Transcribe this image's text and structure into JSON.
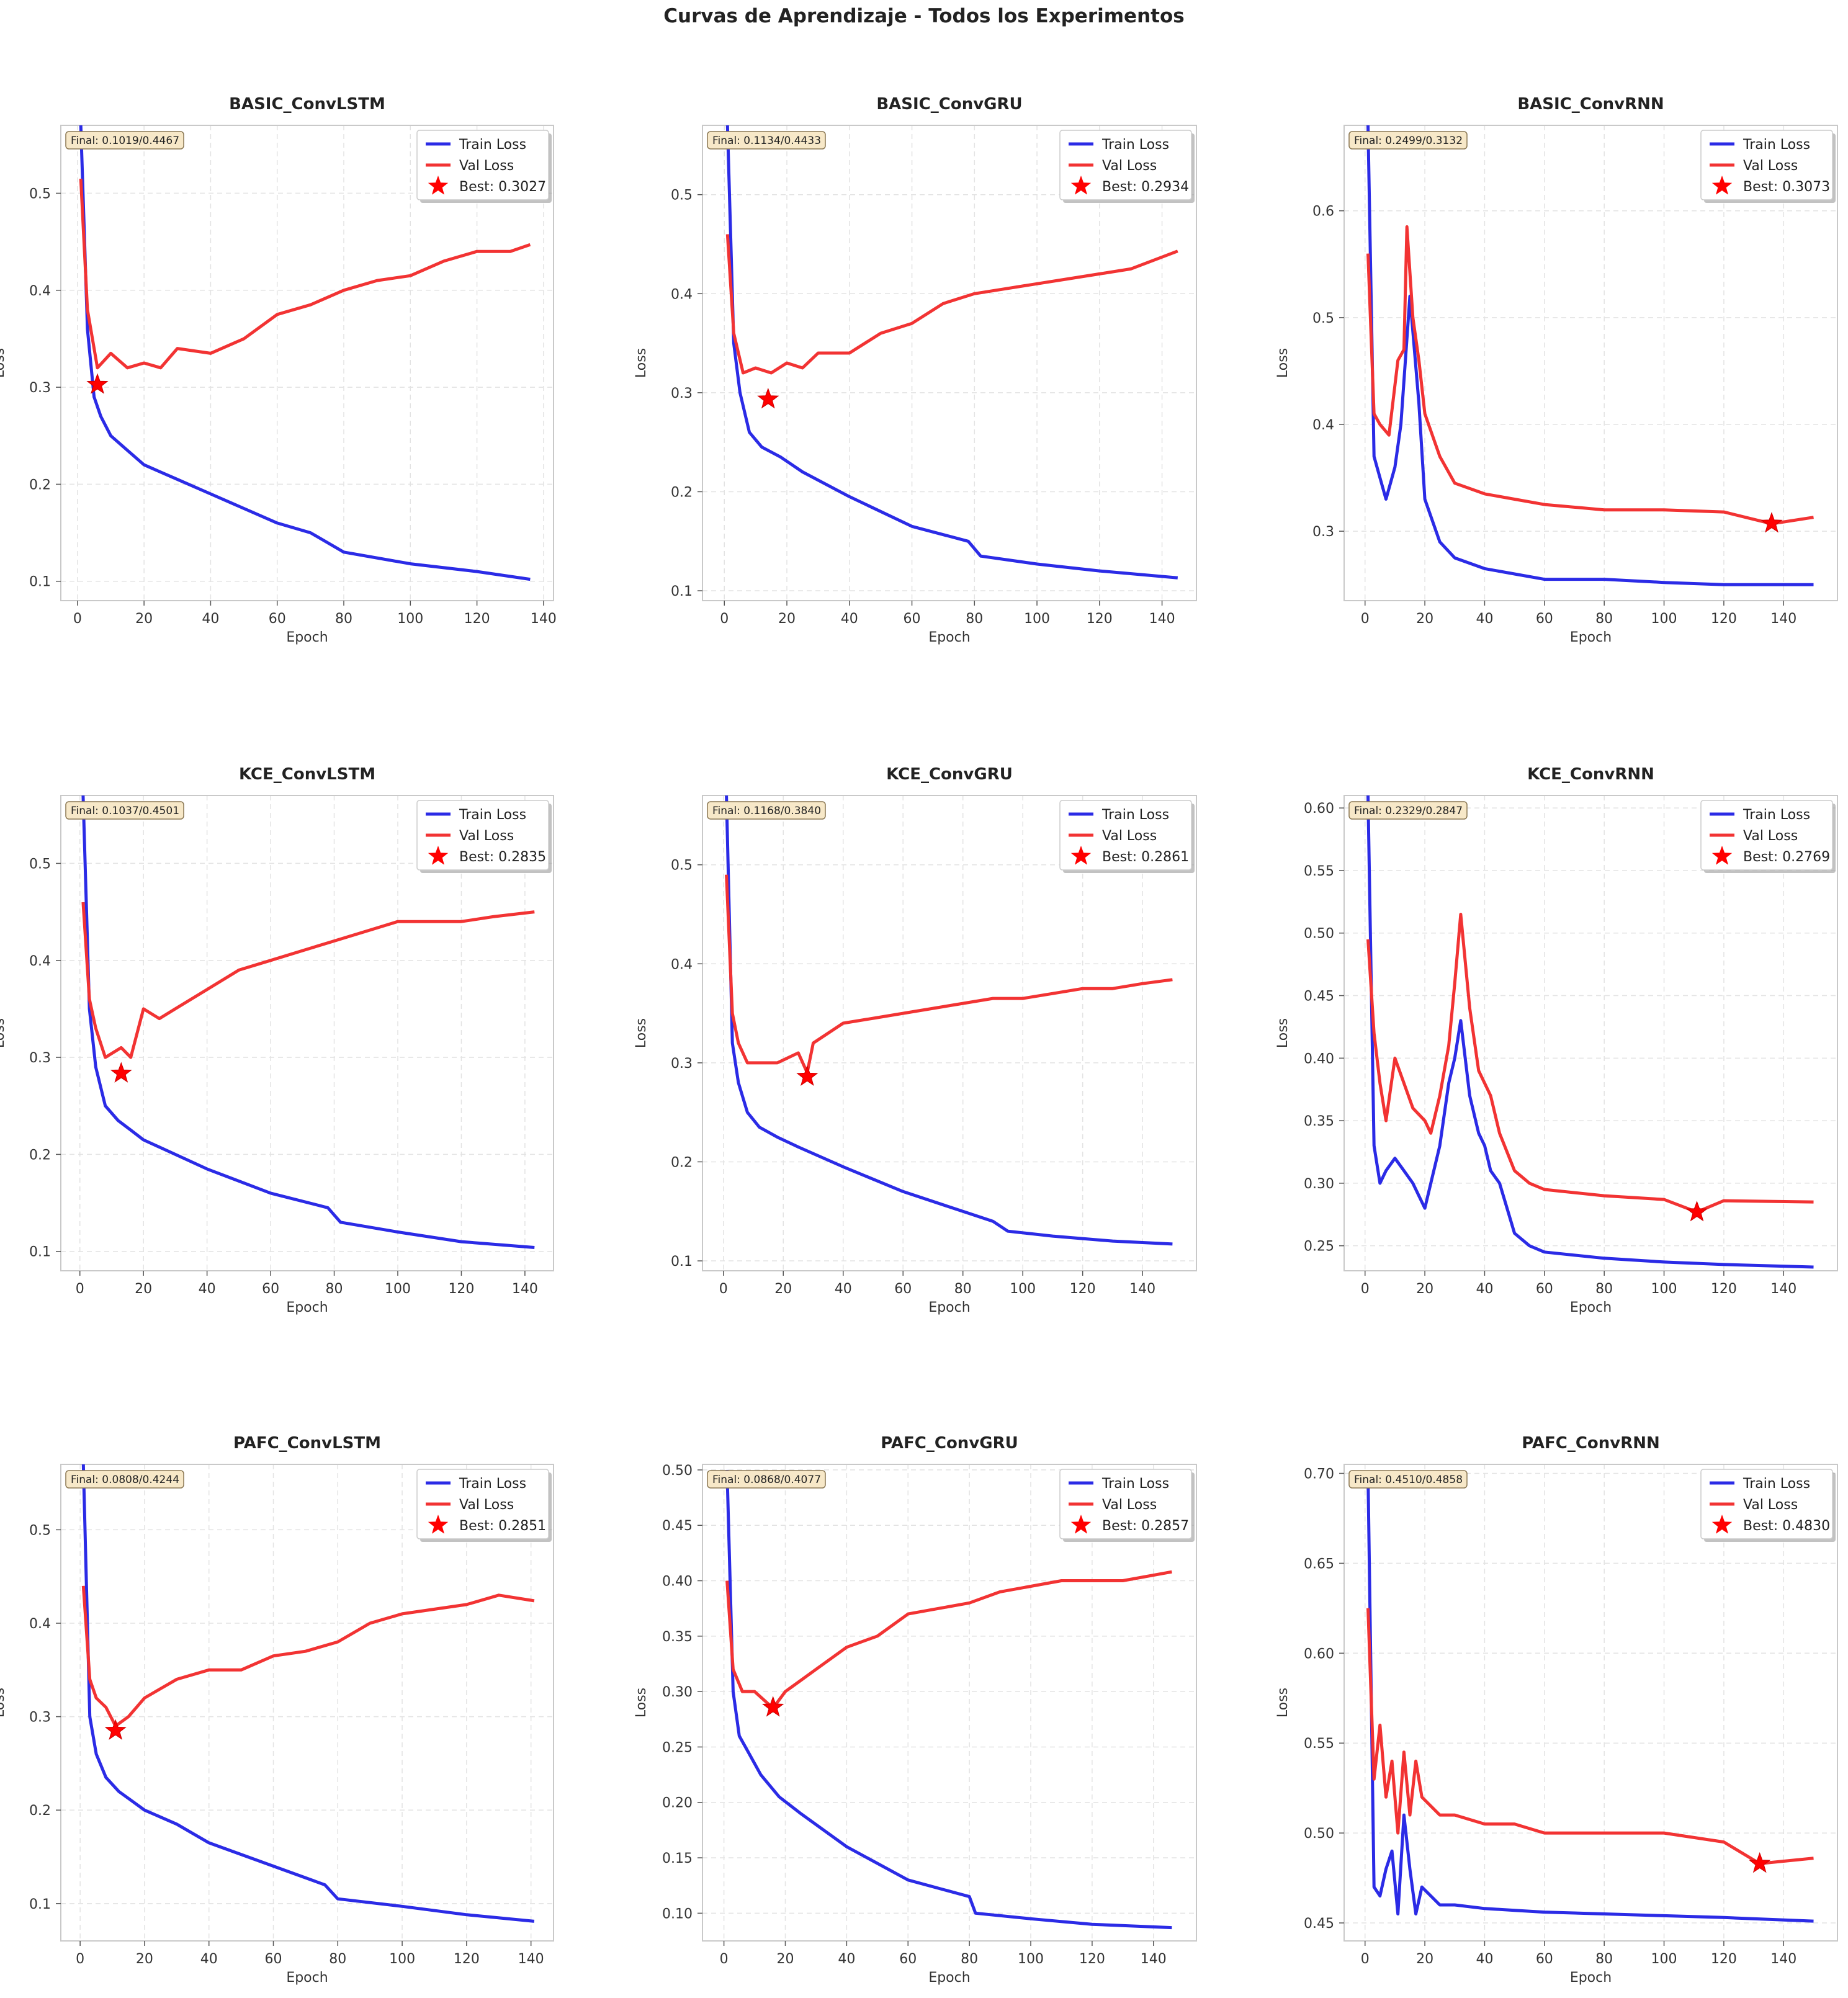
{
  "title": "Curvas de Aprendizaje - Todos los Experimentos",
  "colors": {
    "train": "#2b2be6",
    "val": "#f23333",
    "grid": "#e3e3e3",
    "axis": "#c9c9c9",
    "star": "#ff0000"
  },
  "chart_data": [
    {
      "type": "line",
      "title": "BASIC_ConvLSTM",
      "xlabel": "Epoch",
      "ylabel": "Loss",
      "xlim": [
        -5,
        143
      ],
      "ylim": [
        0.08,
        0.57
      ],
      "xticks": [
        0,
        20,
        40,
        60,
        80,
        100,
        120,
        140
      ],
      "yticks": [
        0.1,
        0.2,
        0.3,
        0.4,
        0.5
      ],
      "final_label": "Final: 0.1019/0.4467",
      "best_label": "Best: 0.3027",
      "best": [
        6,
        0.3027
      ],
      "series": [
        {
          "name": "Train Loss",
          "x": [
            1,
            3,
            5,
            7,
            10,
            15,
            20,
            30,
            40,
            60,
            70,
            80,
            100,
            120,
            136
          ],
          "y": [
            0.57,
            0.36,
            0.29,
            0.27,
            0.25,
            0.235,
            0.22,
            0.205,
            0.19,
            0.16,
            0.15,
            0.13,
            0.118,
            0.11,
            0.102
          ]
        },
        {
          "name": "Val Loss",
          "x": [
            1,
            3,
            6,
            10,
            15,
            20,
            25,
            30,
            40,
            50,
            60,
            70,
            80,
            90,
            100,
            110,
            120,
            130,
            136
          ],
          "y": [
            0.515,
            0.38,
            0.32,
            0.335,
            0.32,
            0.325,
            0.32,
            0.34,
            0.335,
            0.35,
            0.375,
            0.385,
            0.4,
            0.41,
            0.415,
            0.43,
            0.44,
            0.44,
            0.447
          ]
        }
      ]
    },
    {
      "type": "line",
      "title": "BASIC_ConvGRU",
      "xlabel": "Epoch",
      "ylabel": "Loss",
      "xlim": [
        -7,
        151
      ],
      "ylim": [
        0.09,
        0.57
      ],
      "xticks": [
        0,
        20,
        40,
        60,
        80,
        100,
        120,
        140
      ],
      "yticks": [
        0.1,
        0.2,
        0.3,
        0.4,
        0.5
      ],
      "final_label": "Final: 0.1134/0.4433",
      "best_label": "Best: 0.2934",
      "best": [
        14,
        0.2934
      ],
      "series": [
        {
          "name": "Train Loss",
          "x": [
            1,
            3,
            5,
            8,
            12,
            18,
            25,
            40,
            60,
            78,
            82,
            100,
            120,
            145
          ],
          "y": [
            0.57,
            0.35,
            0.3,
            0.26,
            0.245,
            0.235,
            0.22,
            0.195,
            0.165,
            0.15,
            0.135,
            0.127,
            0.12,
            0.113
          ]
        },
        {
          "name": "Val Loss",
          "x": [
            1,
            3,
            6,
            10,
            15,
            20,
            25,
            30,
            40,
            50,
            60,
            70,
            80,
            90,
            100,
            110,
            120,
            130,
            145
          ],
          "y": [
            0.46,
            0.36,
            0.32,
            0.325,
            0.32,
            0.33,
            0.325,
            0.34,
            0.34,
            0.36,
            0.37,
            0.39,
            0.4,
            0.405,
            0.41,
            0.415,
            0.42,
            0.425,
            0.443
          ]
        }
      ]
    },
    {
      "type": "line",
      "title": "BASIC_ConvRNN",
      "xlabel": "Epoch",
      "ylabel": "Loss",
      "xlim": [
        -7,
        158
      ],
      "ylim": [
        0.235,
        0.68
      ],
      "xticks": [
        0,
        20,
        40,
        60,
        80,
        100,
        120,
        140
      ],
      "yticks": [
        0.3,
        0.4,
        0.5,
        0.6
      ],
      "final_label": "Final: 0.2499/0.3132",
      "best_label": "Best: 0.3073",
      "best": [
        136,
        0.3073
      ],
      "series": [
        {
          "name": "Train Loss",
          "x": [
            1,
            3,
            5,
            7,
            10,
            12,
            15,
            18,
            20,
            25,
            30,
            40,
            50,
            60,
            80,
            100,
            120,
            150
          ],
          "y": [
            0.68,
            0.37,
            0.35,
            0.33,
            0.36,
            0.4,
            0.52,
            0.42,
            0.33,
            0.29,
            0.275,
            0.265,
            0.26,
            0.255,
            0.255,
            0.252,
            0.25,
            0.25
          ]
        },
        {
          "name": "Val Loss",
          "x": [
            1,
            3,
            5,
            8,
            11,
            13,
            14,
            16,
            18,
            20,
            25,
            30,
            40,
            50,
            60,
            80,
            100,
            120,
            136,
            150
          ],
          "y": [
            0.56,
            0.41,
            0.4,
            0.39,
            0.46,
            0.47,
            0.585,
            0.5,
            0.46,
            0.41,
            0.37,
            0.345,
            0.335,
            0.33,
            0.325,
            0.32,
            0.32,
            0.318,
            0.307,
            0.313
          ]
        }
      ]
    },
    {
      "type": "line",
      "title": "KCE_ConvLSTM",
      "xlabel": "Epoch",
      "ylabel": "Loss",
      "xlim": [
        -6,
        149
      ],
      "ylim": [
        0.08,
        0.57
      ],
      "xticks": [
        0,
        20,
        40,
        60,
        80,
        100,
        120,
        140
      ],
      "yticks": [
        0.1,
        0.2,
        0.3,
        0.4,
        0.5
      ],
      "final_label": "Final: 0.1037/0.4501",
      "best_label": "Best: 0.2835",
      "best": [
        13,
        0.2835
      ],
      "series": [
        {
          "name": "Train Loss",
          "x": [
            1,
            3,
            5,
            8,
            12,
            16,
            20,
            30,
            40,
            60,
            78,
            82,
            100,
            120,
            143
          ],
          "y": [
            0.57,
            0.35,
            0.29,
            0.25,
            0.235,
            0.225,
            0.215,
            0.2,
            0.185,
            0.16,
            0.145,
            0.13,
            0.12,
            0.11,
            0.104
          ]
        },
        {
          "name": "Val Loss",
          "x": [
            1,
            3,
            5,
            8,
            13,
            16,
            20,
            25,
            30,
            40,
            50,
            60,
            70,
            80,
            90,
            100,
            110,
            120,
            130,
            143
          ],
          "y": [
            0.46,
            0.36,
            0.33,
            0.3,
            0.31,
            0.3,
            0.35,
            0.34,
            0.35,
            0.37,
            0.39,
            0.4,
            0.41,
            0.42,
            0.43,
            0.44,
            0.44,
            0.44,
            0.445,
            0.45
          ]
        }
      ]
    },
    {
      "type": "line",
      "title": "KCE_ConvGRU",
      "xlabel": "Epoch",
      "ylabel": "Loss",
      "xlim": [
        -7,
        158
      ],
      "ylim": [
        0.09,
        0.57
      ],
      "xticks": [
        0,
        20,
        40,
        60,
        80,
        100,
        120,
        140
      ],
      "yticks": [
        0.1,
        0.2,
        0.3,
        0.4,
        0.5
      ],
      "final_label": "Final: 0.1168/0.3840",
      "best_label": "Best: 0.2861",
      "best": [
        28,
        0.2861
      ],
      "series": [
        {
          "name": "Train Loss",
          "x": [
            1,
            3,
            5,
            8,
            12,
            18,
            25,
            40,
            60,
            80,
            90,
            95,
            110,
            130,
            150
          ],
          "y": [
            0.57,
            0.32,
            0.28,
            0.25,
            0.235,
            0.225,
            0.215,
            0.195,
            0.17,
            0.15,
            0.14,
            0.13,
            0.125,
            0.12,
            0.117
          ]
        },
        {
          "name": "Val Loss",
          "x": [
            1,
            3,
            5,
            8,
            12,
            18,
            25,
            28,
            30,
            40,
            50,
            60,
            70,
            80,
            90,
            100,
            110,
            120,
            130,
            140,
            150
          ],
          "y": [
            0.49,
            0.35,
            0.32,
            0.3,
            0.3,
            0.3,
            0.31,
            0.29,
            0.32,
            0.34,
            0.345,
            0.35,
            0.355,
            0.36,
            0.365,
            0.365,
            0.37,
            0.375,
            0.375,
            0.38,
            0.384
          ]
        }
      ]
    },
    {
      "type": "line",
      "title": "KCE_ConvRNN",
      "xlabel": "Epoch",
      "ylabel": "Loss",
      "xlim": [
        -7,
        158
      ],
      "ylim": [
        0.23,
        0.61
      ],
      "xticks": [
        0,
        20,
        40,
        60,
        80,
        100,
        120,
        140
      ],
      "yticks": [
        0.25,
        0.3,
        0.35,
        0.4,
        0.45,
        0.5,
        0.55,
        0.6
      ],
      "final_label": "Final: 0.2329/0.2847",
      "best_label": "Best: 0.2769",
      "best": [
        111,
        0.2769
      ],
      "series": [
        {
          "name": "Train Loss",
          "x": [
            1,
            3,
            5,
            7,
            10,
            13,
            16,
            20,
            22,
            25,
            28,
            30,
            32,
            35,
            38,
            40,
            42,
            45,
            50,
            55,
            60,
            80,
            100,
            120,
            150
          ],
          "y": [
            0.61,
            0.33,
            0.3,
            0.31,
            0.32,
            0.31,
            0.3,
            0.28,
            0.3,
            0.33,
            0.38,
            0.4,
            0.43,
            0.37,
            0.34,
            0.33,
            0.31,
            0.3,
            0.26,
            0.25,
            0.245,
            0.24,
            0.237,
            0.235,
            0.233
          ]
        },
        {
          "name": "Val Loss",
          "x": [
            1,
            3,
            5,
            7,
            10,
            13,
            16,
            20,
            22,
            25,
            28,
            30,
            32,
            35,
            38,
            42,
            45,
            50,
            55,
            60,
            80,
            100,
            111,
            120,
            150
          ],
          "y": [
            0.495,
            0.42,
            0.38,
            0.35,
            0.4,
            0.38,
            0.36,
            0.35,
            0.34,
            0.37,
            0.41,
            0.46,
            0.515,
            0.44,
            0.39,
            0.37,
            0.34,
            0.31,
            0.3,
            0.295,
            0.29,
            0.287,
            0.277,
            0.286,
            0.285
          ]
        }
      ]
    },
    {
      "type": "line",
      "title": "PAFC_ConvLSTM",
      "xlabel": "Epoch",
      "ylabel": "Loss",
      "xlim": [
        -6,
        147
      ],
      "ylim": [
        0.06,
        0.57
      ],
      "xticks": [
        0,
        20,
        40,
        60,
        80,
        100,
        120,
        140
      ],
      "yticks": [
        0.1,
        0.2,
        0.3,
        0.4,
        0.5
      ],
      "final_label": "Final: 0.0808/0.4244",
      "best_label": "Best: 0.2851",
      "best": [
        11,
        0.2851
      ],
      "series": [
        {
          "name": "Train Loss",
          "x": [
            1,
            3,
            5,
            8,
            12,
            16,
            20,
            30,
            40,
            60,
            76,
            80,
            100,
            120,
            141
          ],
          "y": [
            0.57,
            0.3,
            0.26,
            0.235,
            0.22,
            0.21,
            0.2,
            0.185,
            0.165,
            0.14,
            0.12,
            0.105,
            0.097,
            0.088,
            0.081
          ]
        },
        {
          "name": "Val Loss",
          "x": [
            1,
            3,
            5,
            8,
            11,
            15,
            20,
            25,
            30,
            40,
            50,
            60,
            70,
            80,
            90,
            100,
            110,
            120,
            130,
            141
          ],
          "y": [
            0.44,
            0.34,
            0.32,
            0.31,
            0.29,
            0.3,
            0.32,
            0.33,
            0.34,
            0.35,
            0.35,
            0.365,
            0.37,
            0.38,
            0.4,
            0.41,
            0.415,
            0.42,
            0.43,
            0.424
          ]
        }
      ]
    },
    {
      "type": "line",
      "title": "PAFC_ConvGRU",
      "xlabel": "Epoch",
      "ylabel": "Loss",
      "xlim": [
        -7,
        154
      ],
      "ylim": [
        0.075,
        0.505
      ],
      "xticks": [
        0,
        20,
        40,
        60,
        80,
        100,
        120,
        140
      ],
      "yticks": [
        0.1,
        0.15,
        0.2,
        0.25,
        0.3,
        0.35,
        0.4,
        0.45,
        0.5
      ],
      "final_label": "Final: 0.0868/0.4077",
      "best_label": "Best: 0.2857",
      "best": [
        16,
        0.2857
      ],
      "series": [
        {
          "name": "Train Loss",
          "x": [
            1,
            3,
            5,
            8,
            12,
            18,
            25,
            40,
            60,
            80,
            82,
            100,
            120,
            146
          ],
          "y": [
            0.5,
            0.3,
            0.26,
            0.245,
            0.225,
            0.205,
            0.19,
            0.16,
            0.13,
            0.115,
            0.1,
            0.095,
            0.09,
            0.087
          ]
        },
        {
          "name": "Val Loss",
          "x": [
            1,
            3,
            6,
            10,
            16,
            20,
            25,
            30,
            40,
            50,
            60,
            70,
            80,
            90,
            100,
            110,
            120,
            130,
            146
          ],
          "y": [
            0.4,
            0.32,
            0.3,
            0.3,
            0.285,
            0.3,
            0.31,
            0.32,
            0.34,
            0.35,
            0.37,
            0.375,
            0.38,
            0.39,
            0.395,
            0.4,
            0.4,
            0.4,
            0.408
          ]
        }
      ]
    },
    {
      "type": "line",
      "title": "PAFC_ConvRNN",
      "xlabel": "Epoch",
      "ylabel": "Loss",
      "xlim": [
        -7,
        158
      ],
      "ylim": [
        0.44,
        0.705
      ],
      "xticks": [
        0,
        20,
        40,
        60,
        80,
        100,
        120,
        140
      ],
      "yticks": [
        0.45,
        0.5,
        0.55,
        0.6,
        0.65,
        0.7
      ],
      "final_label": "Final: 0.4510/0.4858",
      "best_label": "Best: 0.4830",
      "best": [
        132,
        0.483
      ],
      "series": [
        {
          "name": "Train Loss",
          "x": [
            1,
            3,
            5,
            7,
            9,
            11,
            13,
            15,
            17,
            19,
            22,
            25,
            30,
            40,
            50,
            60,
            80,
            100,
            120,
            150
          ],
          "y": [
            0.7,
            0.47,
            0.465,
            0.48,
            0.49,
            0.455,
            0.51,
            0.48,
            0.455,
            0.47,
            0.465,
            0.46,
            0.46,
            0.458,
            0.457,
            0.456,
            0.455,
            0.454,
            0.453,
            0.451
          ]
        },
        {
          "name": "Val Loss",
          "x": [
            1,
            3,
            5,
            7,
            9,
            11,
            13,
            15,
            17,
            19,
            22,
            25,
            30,
            40,
            50,
            60,
            80,
            100,
            120,
            132,
            150
          ],
          "y": [
            0.625,
            0.53,
            0.56,
            0.52,
            0.54,
            0.5,
            0.545,
            0.51,
            0.54,
            0.52,
            0.515,
            0.51,
            0.51,
            0.505,
            0.505,
            0.5,
            0.5,
            0.5,
            0.495,
            0.483,
            0.486
          ]
        }
      ]
    }
  ]
}
